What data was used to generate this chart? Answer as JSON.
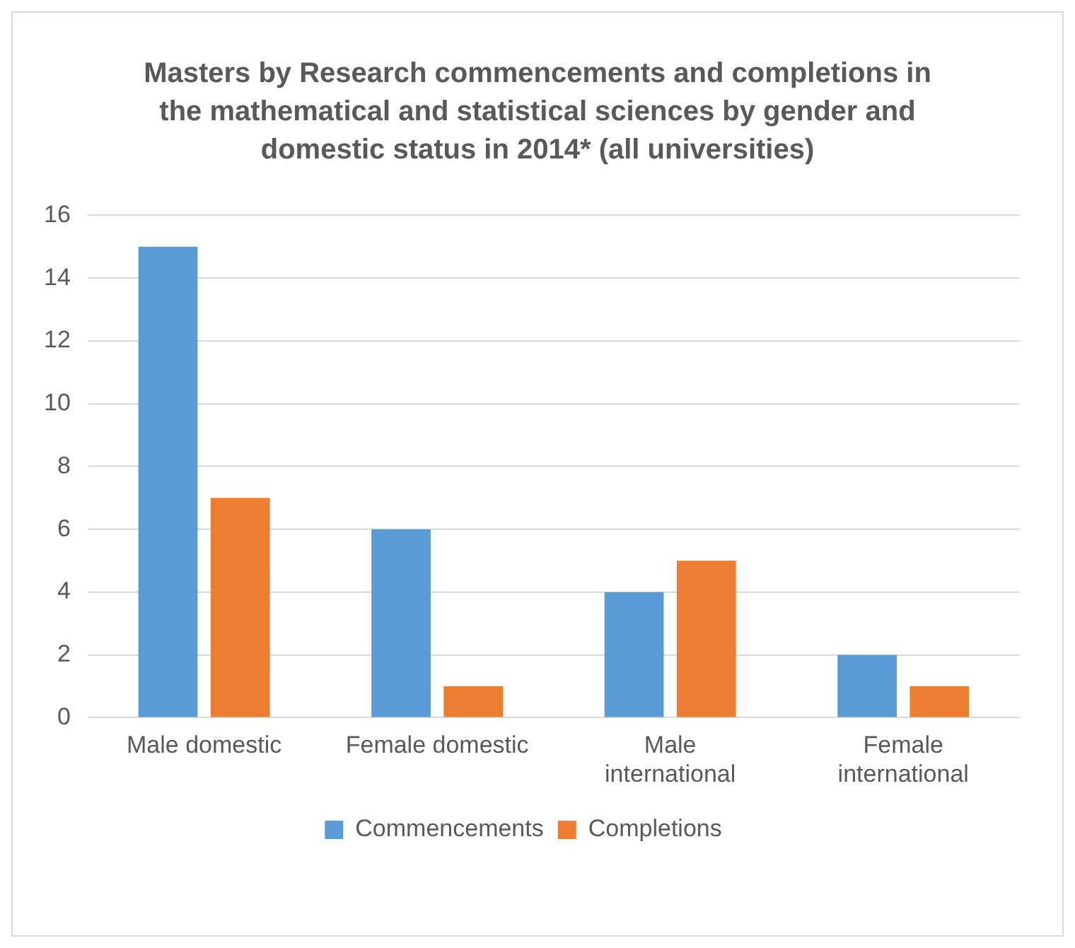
{
  "chart_data": {
    "type": "bar",
    "title": "Masters by Research commencements and completions in the mathematical and statistical sciences by gender and domestic status in 2014* (all universities)",
    "categories": [
      "Male domestic",
      "Female domestic",
      "Male international",
      "Female international"
    ],
    "series": [
      {
        "name": "Commencements",
        "color": "#5b9bd5",
        "values": [
          15,
          6,
          4,
          2
        ]
      },
      {
        "name": "Completions",
        "color": "#ed7d31",
        "values": [
          7,
          1,
          5,
          1
        ]
      }
    ],
    "ylim": [
      0,
      16
    ],
    "yticks": [
      0,
      2,
      4,
      6,
      8,
      10,
      12,
      14,
      16
    ],
    "grid": "y",
    "legend": "bottom"
  }
}
